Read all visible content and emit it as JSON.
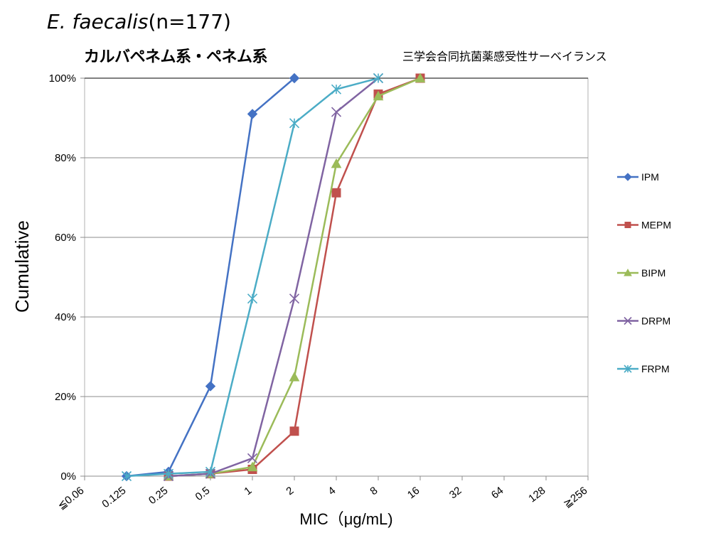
{
  "header": {
    "organism_italic": "E. faecalis",
    "organism_n": "(n=177)",
    "subtitle": "カルバペネム系・ペネム系",
    "source": "三学会合同抗菌薬感受性サーベイランス"
  },
  "chart_data": {
    "type": "line",
    "xlabel": "MIC（μg/mL)",
    "ylabel": "Cumulative",
    "categories": [
      "≦0.06",
      "0.125",
      "0.25",
      "0.5",
      "1",
      "2",
      "4",
      "8",
      "16",
      "32",
      "64",
      "128",
      "≧256"
    ],
    "ylim": [
      0,
      100
    ],
    "yticks": [
      "0%",
      "20%",
      "40%",
      "60%",
      "80%",
      "100%"
    ],
    "grid": "horizontal",
    "legend_position": "right",
    "series": [
      {
        "name": "IPM",
        "color": "#4472C4",
        "marker": "diamond",
        "values": [
          null,
          0,
          1.1,
          22.6,
          91.0,
          100,
          null,
          null,
          null,
          null,
          null,
          null,
          null
        ]
      },
      {
        "name": "MEPM",
        "color": "#C0504D",
        "marker": "square",
        "values": [
          null,
          null,
          0,
          0.6,
          1.7,
          11.3,
          71.2,
          96.0,
          100,
          null,
          null,
          null,
          null
        ]
      },
      {
        "name": "BIPM",
        "color": "#9BBB59",
        "marker": "triangle",
        "values": [
          null,
          null,
          0,
          0.6,
          2.3,
          24.9,
          78.5,
          95.5,
          100,
          null,
          null,
          null,
          null
        ]
      },
      {
        "name": "DRPM",
        "color": "#8064A2",
        "marker": "x",
        "values": [
          null,
          null,
          0,
          0.6,
          4.5,
          44.6,
          91.5,
          100,
          null,
          null,
          null,
          null,
          null
        ]
      },
      {
        "name": "FRPM",
        "color": "#4BACC6",
        "marker": "star",
        "values": [
          null,
          0,
          0.6,
          1.1,
          44.6,
          88.7,
          97.2,
          100,
          null,
          null,
          null,
          null,
          null
        ]
      }
    ]
  }
}
